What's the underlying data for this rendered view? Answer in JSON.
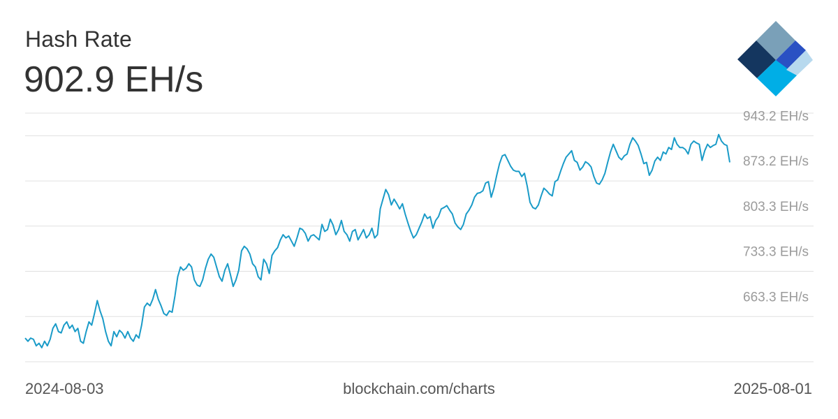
{
  "header": {
    "title": "Hash Rate",
    "current_value": "902.9 EH/s"
  },
  "footer": {
    "start_date": "2024-08-03",
    "source": "blockchain.com/charts",
    "end_date": "2025-08-01"
  },
  "logo": {
    "icon": "blockchain-logo-icon",
    "colors": [
      "#7aa0b8",
      "#14365f",
      "#2a51c3",
      "#00aee6",
      "#b7d9ee"
    ]
  },
  "colors": {
    "line": "#1a9bc8",
    "grid": "#e0e0e0",
    "tick_label": "#9b9b9b"
  },
  "chart_data": {
    "type": "line",
    "x_range": [
      "2024-08-03",
      "2025-08-01"
    ],
    "y_unit": "EH/s",
    "ylim": [
      593.3,
      978.2
    ],
    "grid": true,
    "y_ticks": [
      {
        "value": 663.3,
        "label": "663.3 EH/s"
      },
      {
        "value": 733.3,
        "label": "733.3 EH/s"
      },
      {
        "value": 803.3,
        "label": "803.3 EH/s"
      },
      {
        "value": 873.2,
        "label": "873.2 EH/s"
      },
      {
        "value": 943.2,
        "label": "943.2 EH/s"
      }
    ],
    "series": [
      {
        "values": [
          630,
          625,
          630,
          628,
          618,
          622,
          615,
          625,
          618,
          628,
          645,
          652,
          640,
          638,
          650,
          655,
          645,
          650,
          640,
          645,
          625,
          622,
          640,
          655,
          650,
          668,
          688,
          672,
          660,
          640,
          625,
          618,
          640,
          632,
          642,
          638,
          630,
          640,
          630,
          625,
          635,
          630,
          650,
          678,
          684,
          680,
          690,
          705,
          690,
          680,
          668,
          665,
          672,
          670,
          695,
          725,
          740,
          735,
          738,
          745,
          740,
          720,
          712,
          710,
          720,
          738,
          752,
          760,
          755,
          740,
          725,
          718,
          735,
          745,
          728,
          710,
          720,
          735,
          765,
          772,
          768,
          760,
          745,
          740,
          725,
          720,
          752,
          745,
          730,
          758,
          765,
          770,
          782,
          790,
          785,
          788,
          780,
          772,
          785,
          800,
          798,
          792,
          780,
          788,
          790,
          786,
          782,
          806,
          795,
          798,
          814,
          805,
          790,
          798,
          812,
          795,
          790,
          780,
          795,
          798,
          782,
          790,
          798,
          785,
          790,
          800,
          785,
          790,
          830,
          845,
          860,
          852,
          836,
          845,
          838,
          830,
          838,
          822,
          808,
          795,
          785,
          790,
          800,
          810,
          822,
          815,
          818,
          800,
          812,
          818,
          830,
          832,
          835,
          828,
          822,
          808,
          802,
          798,
          806,
          822,
          828,
          836,
          848,
          854,
          855,
          858,
          870,
          872,
          848,
          862,
          882,
          900,
          912,
          914,
          905,
          896,
          890,
          888,
          888,
          880,
          885,
          865,
          840,
          832,
          830,
          836,
          850,
          862,
          858,
          853,
          850,
          872,
          875,
          888,
          900,
          910,
          915,
          920,
          905,
          902,
          890,
          895,
          903,
          900,
          895,
          880,
          870,
          868,
          875,
          885,
          902,
          918,
          930,
          920,
          910,
          906,
          912,
          915,
          930,
          940,
          935,
          928,
          915,
          900,
          902,
          882,
          890,
          904,
          910,
          905,
          918,
          915,
          925,
          922,
          940,
          930,
          925,
          925,
          922,
          915,
          930,
          935,
          932,
          930,
          905,
          920,
          930,
          925,
          928,
          930,
          945,
          935,
          930,
          928,
          902
        ],
        "color": "#1a9bc8"
      }
    ]
  }
}
